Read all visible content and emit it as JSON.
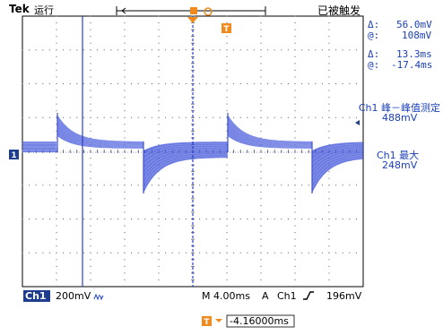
{
  "header": {
    "brand": "Tek",
    "run_state": "运行",
    "trigger_status": "已被触发"
  },
  "cursors": {
    "amplitude_delta_label": "Δ:",
    "amplitude_delta": "56.0mV",
    "amplitude_at_label": "@:",
    "amplitude_at": "108mV",
    "time_delta_label": "Δ:",
    "time_delta": "13.3ms",
    "time_at_label": "@:",
    "time_at": "-17.4ms"
  },
  "measurements": [
    {
      "label": "Ch1 峰－峰值测定",
      "value": "488mV"
    },
    {
      "label": "Ch1 最大",
      "value": "248mV"
    }
  ],
  "markers": {
    "channel_marker": "1",
    "trigger_marker": "T"
  },
  "statusbar": {
    "channel": "Ch1",
    "volts_div": "200mV",
    "bw_icon": "bandwidth-limit-icon",
    "timebase": "M 4.00ms",
    "acq_mode": "A",
    "trig_channel": "Ch1",
    "trig_slope_icon": "rising-edge-icon",
    "trig_level": "196mV"
  },
  "horizontal_position": {
    "marker": "T",
    "arrow": "→",
    "value": "-4.16000ms"
  },
  "colors": {
    "trace": "#3b4fd8",
    "cursor": "#2b3fc9",
    "readout": "#1a3fb8",
    "trigger": "#f08a1c",
    "grid": "#555555"
  }
}
